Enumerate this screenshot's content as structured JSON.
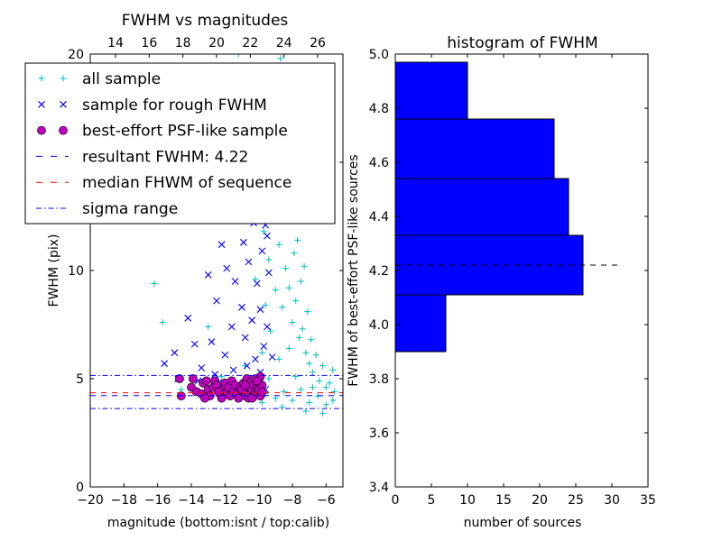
{
  "chart_data": [
    {
      "type": "scatter",
      "title": "FWHM vs magnitudes",
      "xlabel": "magnitude (bottom:isnt / top:calib)",
      "ylabel": "FWHM (pix)",
      "xlim": [
        -20,
        -5
      ],
      "ylim": [
        0,
        20
      ],
      "x_ticks": [
        -20,
        -18,
        -16,
        -14,
        -12,
        -10,
        -8,
        -6
      ],
      "x_tick_labels": [
        "−20",
        "−18",
        "−16",
        "−14",
        "−12",
        "−10",
        "−8",
        "−6"
      ],
      "y_ticks": [
        0,
        5,
        10,
        15,
        20
      ],
      "y_tick_labels": [
        "0",
        "5",
        "10",
        "15",
        "20"
      ],
      "top_axis_ticks": [
        14,
        16,
        18,
        20,
        22,
        24,
        26
      ],
      "top_axis_offset": 32.5,
      "grid": false,
      "legend_position": "top-left",
      "legend": [
        {
          "label": "all sample",
          "marker": "plus",
          "color": "#00bfbf"
        },
        {
          "label": "sample for rough FWHM",
          "marker": "x",
          "color": "#0000ff"
        },
        {
          "label": "best-effort PSF-like sample",
          "marker": "circle",
          "color": "#bf00bf"
        },
        {
          "label": "resultant FWHM: 4.22",
          "line": "dashed",
          "color": "#0000ff"
        },
        {
          "label": "median FHWM of sequence",
          "line": "dashed",
          "color": "#ff0000"
        },
        {
          "label": "sigma range",
          "line": "dashdot",
          "color": "#0000ff"
        }
      ],
      "hlines": [
        {
          "y": 4.22,
          "style": "dashed",
          "color": "#0000ff"
        },
        {
          "y": 4.35,
          "style": "dashed",
          "color": "#ff0000"
        },
        {
          "y": 5.15,
          "style": "dashdot",
          "color": "#0000ff"
        },
        {
          "y": 3.62,
          "style": "dashdot",
          "color": "#0000ff"
        }
      ],
      "series": [
        {
          "name": "all sample",
          "marker": "plus",
          "color": "#00bfbf",
          "points": [
            [
              -16.2,
              9.4
            ],
            [
              -15.7,
              7.6
            ],
            [
              -14.6,
              4.5
            ],
            [
              -13.0,
              7.4
            ],
            [
              -12.2,
              5.1
            ],
            [
              -11.6,
              4.9
            ],
            [
              -10.8,
              5.6
            ],
            [
              -10.4,
              4.6
            ],
            [
              -10.2,
              9.6
            ],
            [
              -9.9,
              13.5
            ],
            [
              -9.8,
              6.2
            ],
            [
              -9.7,
              11.8
            ],
            [
              -9.6,
              8.4
            ],
            [
              -9.5,
              15.2
            ],
            [
              -9.4,
              10.5
            ],
            [
              -9.3,
              7.2
            ],
            [
              -9.2,
              12.6
            ],
            [
              -9.1,
              16.4
            ],
            [
              -9.0,
              9.1
            ],
            [
              -8.9,
              14.1
            ],
            [
              -8.8,
              11.2
            ],
            [
              -8.7,
              19.8
            ],
            [
              -8.6,
              8.3
            ],
            [
              -8.5,
              13.0
            ],
            [
              -8.4,
              10.1
            ],
            [
              -8.3,
              17.2
            ],
            [
              -8.2,
              9.2
            ],
            [
              -8.1,
              12.3
            ],
            [
              -8.0,
              7.6
            ],
            [
              -7.9,
              10.8
            ],
            [
              -7.8,
              8.6
            ],
            [
              -7.7,
              11.4
            ],
            [
              -7.6,
              6.9
            ],
            [
              -7.5,
              9.5
            ],
            [
              -7.4,
              7.3
            ],
            [
              -7.3,
              10.2
            ],
            [
              -7.2,
              6.2
            ],
            [
              -7.1,
              8.1
            ],
            [
              -7.0,
              5.7
            ],
            [
              -6.9,
              6.8
            ],
            [
              -6.8,
              5.3
            ],
            [
              -6.6,
              6.1
            ],
            [
              -6.4,
              4.9
            ],
            [
              -6.2,
              5.6
            ],
            [
              -6.0,
              4.6
            ],
            [
              -5.8,
              4.8
            ],
            [
              -5.6,
              5.4
            ],
            [
              -5.5,
              4.4
            ],
            [
              -9.6,
              4.3
            ],
            [
              -9.0,
              4.1
            ],
            [
              -8.5,
              4.4
            ],
            [
              -8.0,
              4.0
            ],
            [
              -7.5,
              4.5
            ],
            [
              -7.0,
              3.9
            ],
            [
              -6.5,
              4.2
            ],
            [
              -6.0,
              3.8
            ],
            [
              -5.6,
              4.0
            ],
            [
              -8.8,
              5.9
            ],
            [
              -8.2,
              6.4
            ],
            [
              -7.8,
              5.1
            ],
            [
              -9.4,
              5.0
            ],
            [
              -6.8,
              4.6
            ],
            [
              -7.2,
              3.5
            ],
            [
              -6.2,
              3.4
            ],
            [
              -8.6,
              3.7
            ],
            [
              -11.2,
              20.0
            ],
            [
              -10.6,
              19.2
            ],
            [
              -9.0,
              18.1
            ],
            [
              -8.2,
              15.4
            ],
            [
              -7.6,
              13.1
            ],
            [
              -9.8,
              3.9
            ],
            [
              -10.2,
              4.1
            ]
          ]
        },
        {
          "name": "sample for rough FWHM",
          "marker": "x",
          "color": "#0000ff",
          "points": [
            [
              -15.6,
              5.7
            ],
            [
              -15.0,
              6.2
            ],
            [
              -14.2,
              7.8
            ],
            [
              -13.8,
              6.6
            ],
            [
              -13.4,
              5.5
            ],
            [
              -13.0,
              9.8
            ],
            [
              -12.8,
              6.7
            ],
            [
              -12.5,
              8.6
            ],
            [
              -12.2,
              11.2
            ],
            [
              -12.0,
              6.1
            ],
            [
              -11.8,
              12.6
            ],
            [
              -11.6,
              7.4
            ],
            [
              -11.4,
              9.5
            ],
            [
              -11.2,
              14.6
            ],
            [
              -11.0,
              8.3
            ],
            [
              -10.9,
              11.3
            ],
            [
              -10.8,
              6.9
            ],
            [
              -10.6,
              10.4
            ],
            [
              -10.5,
              13.1
            ],
            [
              -10.4,
              7.7
            ],
            [
              -10.3,
              12.2
            ],
            [
              -10.2,
              5.9
            ],
            [
              -10.1,
              9.4
            ],
            [
              -10.0,
              15.2
            ],
            [
              -9.9,
              8.2
            ],
            [
              -9.8,
              10.9
            ],
            [
              -9.7,
              6.5
            ],
            [
              -9.6,
              12.1
            ],
            [
              -9.5,
              7.4
            ],
            [
              -9.4,
              9.9
            ],
            [
              -9.3,
              14.0
            ],
            [
              -9.2,
              6.0
            ],
            [
              -12.6,
              5.2
            ],
            [
              -11.5,
              5.4
            ],
            [
              -10.7,
              5.6
            ],
            [
              -9.9,
              5.3
            ],
            [
              -14.8,
              5.0
            ],
            [
              -13.6,
              4.9
            ],
            [
              -12.4,
              4.8
            ],
            [
              -11.3,
              4.7
            ],
            [
              -10.4,
              4.6
            ],
            [
              -9.6,
              4.5
            ],
            [
              -11.9,
              10.1
            ],
            [
              -10.8,
              13.8
            ],
            [
              -9.5,
              11.6
            ]
          ]
        },
        {
          "name": "best-effort PSF-like sample",
          "marker": "circle",
          "color": "#bf00bf",
          "points": [
            [
              -14.7,
              5.0
            ],
            [
              -14.6,
              4.2
            ],
            [
              -14.0,
              4.6
            ],
            [
              -13.9,
              5.0
            ],
            [
              -13.7,
              4.4
            ],
            [
              -13.4,
              4.3
            ],
            [
              -13.3,
              4.8
            ],
            [
              -13.1,
              4.9
            ],
            [
              -13.0,
              4.5
            ],
            [
              -12.9,
              4.2
            ],
            [
              -12.7,
              4.6
            ],
            [
              -12.6,
              4.9
            ],
            [
              -12.5,
              4.7
            ],
            [
              -12.3,
              4.3
            ],
            [
              -12.2,
              4.1
            ],
            [
              -12.1,
              4.5
            ],
            [
              -12.0,
              4.8
            ],
            [
              -11.9,
              4.4
            ],
            [
              -11.8,
              4.6
            ],
            [
              -11.7,
              4.2
            ],
            [
              -11.6,
              4.9
            ],
            [
              -11.5,
              4.4
            ],
            [
              -11.4,
              4.7
            ],
            [
              -11.3,
              4.3
            ],
            [
              -11.2,
              4.1
            ],
            [
              -11.1,
              4.6
            ],
            [
              -11.0,
              4.5
            ],
            [
              -10.9,
              4.8
            ],
            [
              -10.8,
              4.2
            ],
            [
              -10.7,
              5.0
            ],
            [
              -10.7,
              4.4
            ],
            [
              -10.6,
              4.6
            ],
            [
              -10.6,
              4.1
            ],
            [
              -10.5,
              4.8
            ],
            [
              -10.5,
              4.3
            ],
            [
              -10.4,
              4.5
            ],
            [
              -10.4,
              4.9
            ],
            [
              -10.3,
              4.2
            ],
            [
              -10.3,
              4.7
            ],
            [
              -10.2,
              4.4
            ],
            [
              -10.2,
              5.0
            ],
            [
              -10.1,
              4.6
            ],
            [
              -10.1,
              4.3
            ],
            [
              -10.0,
              4.8
            ],
            [
              -10.0,
              4.5
            ],
            [
              -9.9,
              4.2
            ],
            [
              -9.9,
              5.1
            ],
            [
              -9.8,
              4.7
            ],
            [
              -9.8,
              4.4
            ],
            [
              -10.1,
              4.9
            ],
            [
              -10.4,
              4.1
            ],
            [
              -10.8,
              4.7
            ],
            [
              -12.4,
              4.4
            ],
            [
              -13.2,
              4.1
            ]
          ]
        }
      ]
    },
    {
      "type": "bar",
      "orientation": "horizontal",
      "title": "histogram of FWHM",
      "xlabel": "number of sources",
      "ylabel": "FWHM of best-effort PSF-like sources",
      "xlim": [
        0,
        35
      ],
      "ylim": [
        3.4,
        5.0
      ],
      "x_ticks": [
        0,
        5,
        10,
        15,
        20,
        25,
        30,
        35
      ],
      "x_tick_labels": [
        "0",
        "5",
        "10",
        "15",
        "20",
        "25",
        "30",
        "35"
      ],
      "y_ticks": [
        3.4,
        3.6,
        3.8,
        4.0,
        4.2,
        4.4,
        4.6,
        4.8,
        5.0
      ],
      "y_tick_labels": [
        "3.4",
        "3.6",
        "3.8",
        "4.0",
        "4.2",
        "4.4",
        "4.6",
        "4.8",
        "5.0"
      ],
      "grid": false,
      "bar_color": "#0000ff",
      "bins": [
        {
          "low": 3.9,
          "high": 4.11,
          "count": 7
        },
        {
          "low": 4.11,
          "high": 4.33,
          "count": 26
        },
        {
          "low": 4.33,
          "high": 4.54,
          "count": 24
        },
        {
          "low": 4.54,
          "high": 4.76,
          "count": 22
        },
        {
          "low": 4.76,
          "high": 4.97,
          "count": 10
        }
      ],
      "hline": {
        "y": 4.22,
        "x_end": 31.3,
        "style": "dashed",
        "color": "#000000"
      }
    }
  ]
}
